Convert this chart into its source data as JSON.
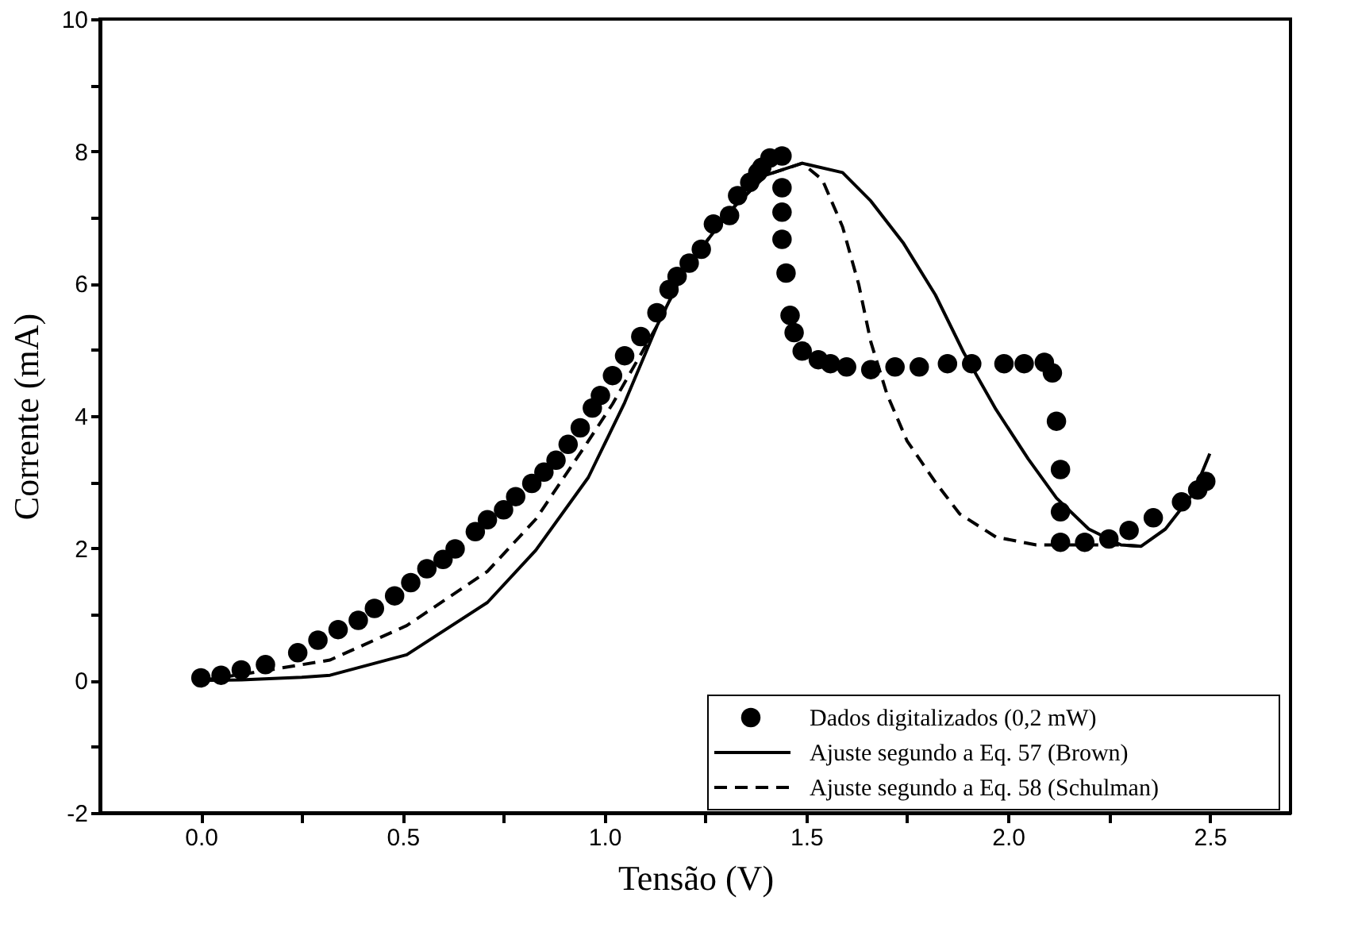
{
  "chart_data": {
    "type": "line",
    "xlabel": "Tensão (V)",
    "ylabel": "Corrente (mA)",
    "xlim": [
      -0.25,
      2.7
    ],
    "ylim": [
      -2,
      10
    ],
    "xticks": [
      {
        "value": 0,
        "label": "0.0"
      },
      {
        "value": 0.25,
        "label": null
      },
      {
        "value": 0.5,
        "label": "0.5"
      },
      {
        "value": 0.75,
        "label": null
      },
      {
        "value": 1,
        "label": "1.0"
      },
      {
        "value": 1.25,
        "label": null
      },
      {
        "value": 1.5,
        "label": "1.5"
      },
      {
        "value": 1.75,
        "label": null
      },
      {
        "value": 2,
        "label": "2.0"
      },
      {
        "value": 2.25,
        "label": null
      },
      {
        "value": 2.5,
        "label": "2.5"
      }
    ],
    "yticks": [
      -2,
      {
        "value": -1,
        "label": null
      },
      0,
      {
        "value": 1,
        "label": null
      },
      2,
      {
        "value": 3,
        "label": null
      },
      4,
      {
        "value": 5,
        "label": null
      },
      6,
      {
        "value": 7,
        "label": null
      },
      8,
      {
        "value": 9,
        "label": null
      },
      10
    ],
    "legend": "bottom right",
    "series": [
      {
        "name": "Dados digitalizados (0,2 mW)",
        "type": "scatter",
        "marker": "circle",
        "color": "#000000",
        "x": [
          0,
          0.05,
          0.1,
          0.16,
          0.24,
          0.29,
          0.34,
          0.39,
          0.43,
          0.48,
          0.52,
          0.56,
          0.6,
          0.63,
          0.68,
          0.71,
          0.75,
          0.78,
          0.82,
          0.85,
          0.88,
          0.91,
          0.94,
          0.97,
          0.99,
          1.02,
          1.05,
          1.09,
          1.13,
          1.16,
          1.18,
          1.21,
          1.24,
          1.27,
          1.31,
          1.33,
          1.36,
          1.38,
          1.39,
          1.41,
          1.44,
          1.44,
          1.44,
          1.44,
          1.45,
          1.46,
          1.47,
          1.49,
          1.53,
          1.56,
          1.6,
          1.66,
          1.72,
          1.78,
          1.85,
          1.91,
          1.99,
          2.04,
          2.09,
          2.11,
          2.12,
          2.13,
          2.13,
          2.13,
          2.19,
          2.25,
          2.3,
          2.36,
          2.43,
          2.47,
          2.49
        ],
        "values": [
          0.04,
          0.08,
          0.16,
          0.24,
          0.42,
          0.61,
          0.77,
          0.91,
          1.09,
          1.28,
          1.48,
          1.69,
          1.83,
          1.99,
          2.25,
          2.43,
          2.58,
          2.78,
          2.98,
          3.15,
          3.33,
          3.57,
          3.82,
          4.12,
          4.31,
          4.61,
          4.91,
          5.2,
          5.56,
          5.91,
          6.11,
          6.31,
          6.52,
          6.9,
          7.03,
          7.33,
          7.53,
          7.68,
          7.76,
          7.9,
          7.93,
          7.45,
          7.08,
          6.67,
          6.16,
          5.52,
          5.26,
          4.98,
          4.85,
          4.79,
          4.74,
          4.7,
          4.74,
          4.74,
          4.79,
          4.79,
          4.79,
          4.79,
          4.81,
          4.65,
          3.92,
          3.19,
          2.55,
          2.09,
          2.09,
          2.14,
          2.27,
          2.46,
          2.7,
          2.88,
          3.01
        ]
      },
      {
        "name": "Ajuste segundo a Eq. 57 (Brown)",
        "line_style": "solid",
        "color": "#000000",
        "x": [
          0,
          0.1,
          0.25,
          0.32,
          0.51,
          0.71,
          0.83,
          0.96,
          1.05,
          1.13,
          1.2,
          1.31,
          1.4,
          1.49,
          1.59,
          1.66,
          1.74,
          1.82,
          1.89,
          1.97,
          2.05,
          2.12,
          2.2,
          2.28,
          2.33,
          2.39,
          2.46,
          2.5
        ],
        "values": [
          0,
          0.01,
          0.05,
          0.08,
          0.39,
          1.18,
          1.97,
          3.07,
          4.2,
          5.36,
          6.22,
          7.09,
          7.64,
          7.82,
          7.68,
          7.25,
          6.62,
          5.83,
          4.96,
          4.1,
          3.35,
          2.76,
          2.29,
          2.05,
          2.03,
          2.29,
          2.84,
          3.43
        ]
      },
      {
        "name": "Ajuste segundo a Eq. 58 (Schulman)",
        "line_style": "dashed",
        "color": "#000000",
        "x": [
          0,
          0.13,
          0.32,
          0.51,
          0.71,
          0.83,
          0.96,
          1.02,
          1.13,
          1.2,
          1.31,
          1.4,
          1.49,
          1.54,
          1.59,
          1.63,
          1.66,
          1.7,
          1.75,
          1.82,
          1.88,
          1.97,
          2.07,
          2.12,
          2.2,
          2.28,
          2.33
        ],
        "values": [
          0,
          0.12,
          0.31,
          0.83,
          1.65,
          2.44,
          3.62,
          4.18,
          5.36,
          6.22,
          7.09,
          7.64,
          7.82,
          7.57,
          6.86,
          5.99,
          5.12,
          4.33,
          3.62,
          3.0,
          2.52,
          2.17,
          2.05,
          2.05,
          2.05,
          2.05,
          2.03
        ]
      }
    ]
  }
}
